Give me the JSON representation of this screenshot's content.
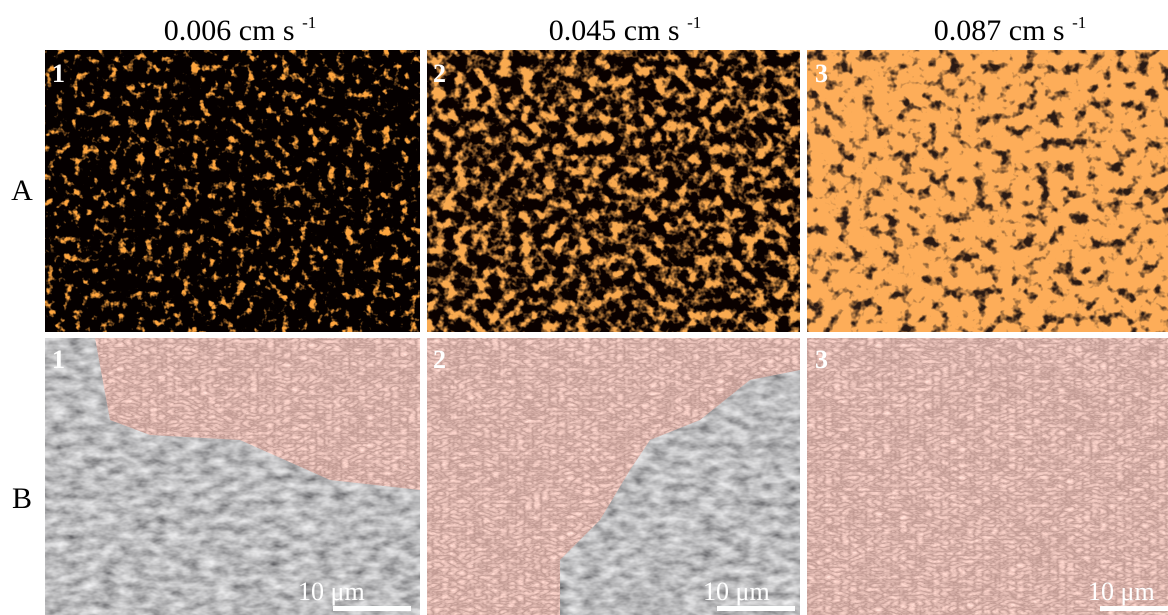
{
  "columns": [
    {
      "label": "0.006 cm s",
      "exponent": "-1"
    },
    {
      "label": "0.045 cm s",
      "exponent": "-1"
    },
    {
      "label": "0.087 cm s",
      "exponent": "-1"
    }
  ],
  "rows": [
    {
      "label": "A",
      "panels": [
        "1",
        "2",
        "3"
      ]
    },
    {
      "label": "B",
      "panels": [
        "1",
        "2",
        "3"
      ],
      "scale_bars": [
        "10 μm",
        "10 μm",
        "10 μm"
      ]
    }
  ]
}
